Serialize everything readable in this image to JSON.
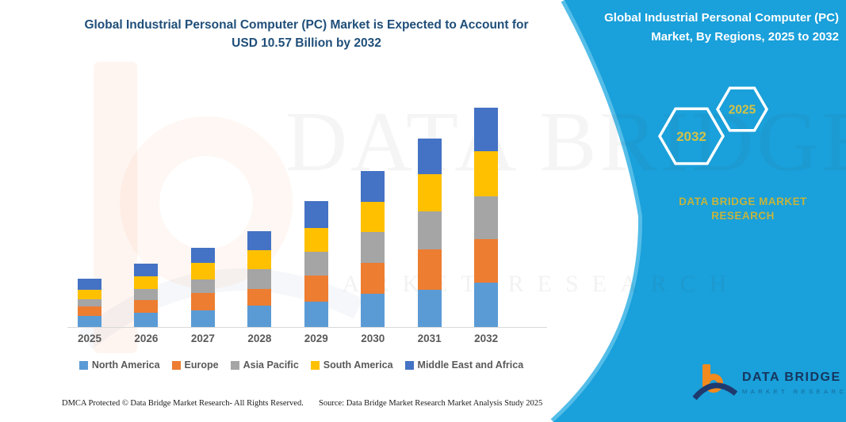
{
  "left_panel": {
    "title_line1": "Global Industrial Personal Computer (PC) Market is Expected to Account for",
    "title_line2": "USD 10.57 Billion by 2032"
  },
  "right_panel": {
    "title": "Global Industrial Personal Computer (PC) Market, By Regions, 2025 to 2032",
    "accent_color": "#1aa0da",
    "edge_stripe_color": "#54bde8",
    "hexagons": [
      {
        "label": "2032"
      },
      {
        "label": "2025"
      }
    ],
    "brand_line1": "DATA BRIDGE MARKET",
    "brand_line2": "RESEARCH",
    "brand_text_color": "#c3b43e"
  },
  "watermark": {
    "big_text": "DATA BRIDGE",
    "sub_text": "MARKET RESEARCH"
  },
  "chart_data": {
    "type": "bar",
    "stacked": true,
    "title": "Global Industrial Personal Computer (PC) Market is Expected to Account for USD 10.57 Billion by 2032",
    "unit": "USD Billion",
    "xlabel": "",
    "ylabel": "",
    "y_axis_shown": false,
    "grid": false,
    "legend_position": "bottom",
    "ylim": [
      0,
      11
    ],
    "categories": [
      "2025",
      "2026",
      "2027",
      "2028",
      "2029",
      "2030",
      "2031",
      "2032"
    ],
    "series": [
      {
        "name": "North America",
        "color": "#5B9BD5",
        "values": [
          0.51,
          0.66,
          0.77,
          1.0,
          1.21,
          1.6,
          1.79,
          2.14
        ]
      },
      {
        "name": "Europe",
        "color": "#ED7D31",
        "values": [
          0.48,
          0.61,
          0.87,
          0.82,
          1.28,
          1.49,
          1.94,
          2.09
        ]
      },
      {
        "name": "Asia Pacific",
        "color": "#A5A5A5",
        "values": [
          0.32,
          0.56,
          0.66,
          0.97,
          1.15,
          1.48,
          1.83,
          2.08
        ]
      },
      {
        "name": "South America",
        "color": "#FFC000",
        "values": [
          0.47,
          0.61,
          0.79,
          0.92,
          1.15,
          1.46,
          1.83,
          2.17
        ]
      },
      {
        "name": "Middle East and Africa",
        "color": "#4472C4",
        "values": [
          0.52,
          0.61,
          0.72,
          0.92,
          1.28,
          1.51,
          1.71,
          2.09
        ]
      }
    ],
    "totals": [
      2.3,
      3.05,
      3.81,
      4.63,
      6.07,
      7.54,
      9.1,
      10.57
    ],
    "anchor": {
      "category": "2032",
      "total": 10.57
    }
  },
  "footer": {
    "dmca": "DMCA Protected © Data Bridge Market Research-  All Rights Reserved.",
    "source": "Source: Data Bridge Market Research  Market Analysis Study 2025"
  },
  "logo": {
    "name": "DATA BRIDGE",
    "subtitle": "MARKET RESEARCH"
  }
}
